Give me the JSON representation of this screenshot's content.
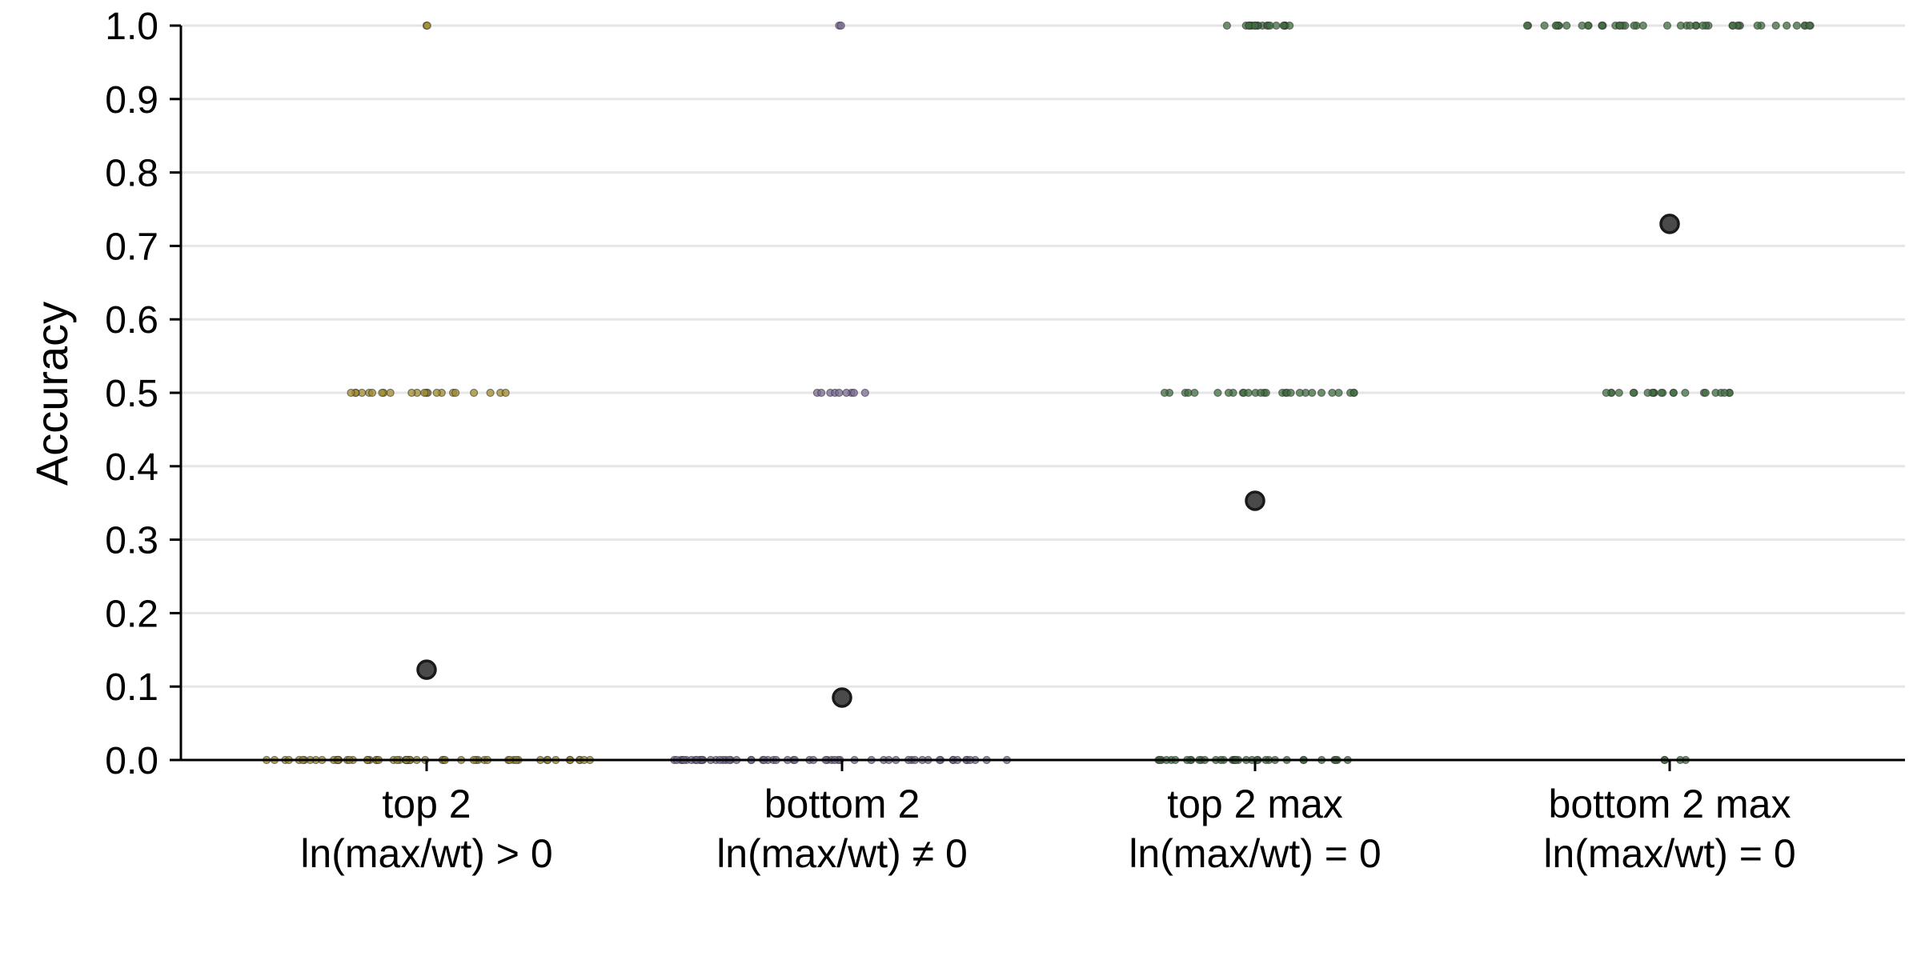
{
  "chart_data": {
    "type": "scatter",
    "title": "",
    "xlabel": "",
    "ylabel": "Accuracy",
    "ylim": [
      0,
      1
    ],
    "yticks": [
      "0.0",
      "0.1",
      "0.2",
      "0.3",
      "0.4",
      "0.5",
      "0.6",
      "0.7",
      "0.8",
      "0.9",
      "1.0"
    ],
    "grid": "horizontal",
    "categories": [
      {
        "line1": "top 2",
        "line2": "ln(max/wt) > 0",
        "color": "#a08c2a",
        "mean": 0.123,
        "clusters": [
          {
            "y": 1.0,
            "n": 2,
            "spread": 0.03
          },
          {
            "y": 0.5,
            "n": 22,
            "spread": 0.5
          },
          {
            "y": 0.0,
            "n": 60,
            "spread": 1.0
          }
        ]
      },
      {
        "line1": "bottom 2",
        "line2": "ln(max/wt) ≠ 0",
        "color": "#7b6a96",
        "mean": 0.085,
        "clusters": [
          {
            "y": 1.0,
            "n": 2,
            "spread": 0.03
          },
          {
            "y": 0.5,
            "n": 9,
            "spread": 0.15
          },
          {
            "y": 0.0,
            "n": 60,
            "spread": 1.0
          }
        ]
      },
      {
        "line1": "top 2 max",
        "line2": "ln(max/wt) = 0",
        "color": "#3f6e3f",
        "mean": 0.353,
        "clusters": [
          {
            "y": 1.0,
            "n": 20,
            "spread": 0.22
          },
          {
            "y": 0.5,
            "n": 28,
            "spread": 0.6
          },
          {
            "y": 0.0,
            "n": 35,
            "spread": 0.6
          }
        ]
      },
      {
        "line1": "bottom 2 max",
        "line2": "ln(max/wt) = 0",
        "color": "#3f6e3f",
        "mean": 0.73,
        "clusters": [
          {
            "y": 1.0,
            "n": 45,
            "spread": 0.9
          },
          {
            "y": 0.5,
            "n": 22,
            "spread": 0.42
          },
          {
            "y": 0.0,
            "n": 4,
            "spread": 0.1
          }
        ]
      }
    ]
  }
}
